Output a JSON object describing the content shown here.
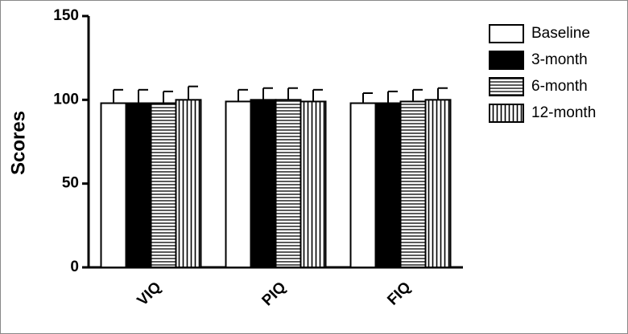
{
  "chart_data": {
    "type": "bar",
    "y_label": "Scores",
    "categories": [
      "VIQ",
      "PIQ",
      "FIQ"
    ],
    "ylim": [
      0,
      150
    ],
    "yticks": [
      0,
      50,
      100,
      150
    ],
    "series": [
      {
        "name": "Baseline",
        "color": "#ffffff",
        "pattern": "solid",
        "values": [
          98,
          99,
          98
        ],
        "errors": [
          8,
          7,
          6
        ]
      },
      {
        "name": "3-month",
        "color": "#000000",
        "pattern": "solid",
        "values": [
          98,
          100,
          98
        ],
        "errors": [
          8,
          7,
          7
        ]
      },
      {
        "name": "6-month",
        "color": "#ffffff",
        "pattern": "horizontal",
        "values": [
          98,
          100,
          99
        ],
        "errors": [
          7,
          7,
          7
        ]
      },
      {
        "name": "12-month",
        "color": "#ffffff",
        "pattern": "vertical",
        "values": [
          100,
          99,
          100
        ],
        "errors": [
          8,
          7,
          7
        ]
      }
    ]
  }
}
